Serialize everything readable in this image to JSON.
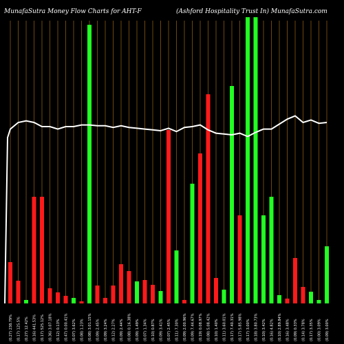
{
  "header": {
    "left": "MunafaSutra  Money Flow  Charts for AHT-F",
    "right": "(Ashford Hospitality Trust In) MunafaSutra.com"
  },
  "colors": {
    "background": "#000000",
    "grid": "#8a5a12",
    "up": "#22ff22",
    "down": "#ff1a1a",
    "line": "#ffffff",
    "text": "#ffffff"
  },
  "chart_data": {
    "type": "bar",
    "title": "MunafaSutra  Money Flow  Charts for AHT-F",
    "subtitle": "(Ashford Hospitality Trust In) MunafaSutra.com",
    "grid": "vertical",
    "series": [
      {
        "kind": "bars",
        "values": [
          60,
          33,
          5,
          155,
          155,
          22,
          16,
          11,
          8,
          3,
          405,
          26,
          8,
          26,
          57,
          47,
          32,
          34,
          27,
          18,
          252,
          77,
          5,
          174,
          218,
          304,
          37,
          20,
          316,
          128,
          450,
          450,
          128,
          155,
          12,
          7,
          66,
          24,
          17,
          5,
          83
        ],
        "colors": [
          "down",
          "down",
          "up",
          "down",
          "down",
          "down",
          "down",
          "down",
          "up",
          "down",
          "up",
          "down",
          "down",
          "down",
          "down",
          "down",
          "up",
          "down",
          "down",
          "up",
          "down",
          "up",
          "down",
          "up",
          "down",
          "down",
          "down",
          "up",
          "up",
          "down",
          "up",
          "up",
          "up",
          "up",
          "up",
          "down",
          "down",
          "down",
          "up",
          "up",
          "up"
        ]
      },
      {
        "kind": "line",
        "values": [
          52,
          60,
          62,
          60,
          55,
          55,
          52,
          55,
          55,
          57,
          57,
          56,
          56,
          54,
          56,
          54,
          53,
          52,
          51,
          50,
          53,
          49,
          54,
          55,
          57,
          51,
          47,
          46,
          45,
          47,
          43,
          48,
          52,
          52,
          58,
          64,
          68,
          60,
          63,
          59,
          60
        ]
      }
    ],
    "categories": [
      "(0.27) 238.79%",
      "(0.17) 125.5%",
      "(0.27) 12.42%",
      "(0.16) 441.53%",
      "(0.17) 525.12%",
      "(0.36) 3.07.18%",
      "(0.12) 0.13%",
      "(0.47) 0.00.41%",
      "(0.07) 3.62%",
      "(0.08) 1.23%",
      "(0.08) 3.01.15%",
      "(0.09) 2.45%",
      "(0.09) 3.24%",
      "(0.12) 2.27%",
      "(0.09) 2.44%",
      "(0.08) 0.16.38%",
      "(0.09) 1.49%",
      "(0.07) 1.34%",
      "(0.10) 0.87%",
      "(0.09) 3.41%",
      "(0.07) 2.45%",
      "(0.11) 7.30%",
      "(0.09) 2.00.96%",
      "(0.09) 7.44.67%",
      "(0.19) 0.08.97%",
      "(0.08) 5.08.42%",
      "(0.10) 1.40%",
      "(0.11) 3.60.01%",
      "(0.17) 7.40.31%",
      "(0.17) 5.85.98%",
      "(0.17) 3.00%",
      "(0.18) 3.80.73%",
      "(0.10) 3.42%",
      "(0.16) 4.82%",
      "(0.10) 2.89.84%",
      "(0.16) 3.48%",
      "(0.09) 0.33%",
      "(0.14) 3.78%",
      "(0.17) 3.35%",
      "(0.00) 3.09%",
      "(0.09) 3.00%"
    ]
  }
}
